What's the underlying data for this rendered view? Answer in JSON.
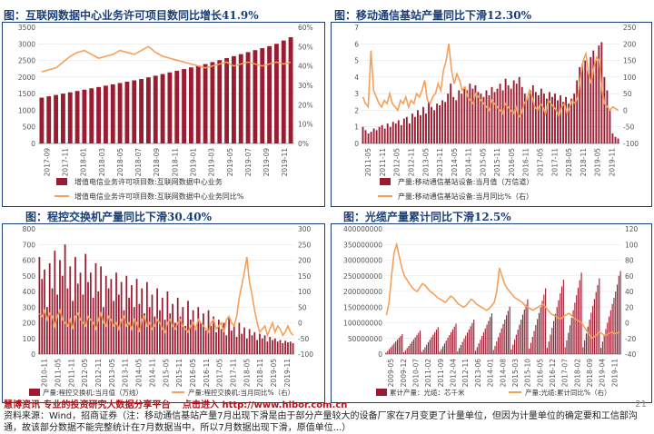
{
  "colors": {
    "bar": "#9b1b30",
    "line": "#f5a05a",
    "title": "#1a3f78",
    "axis": "#555555",
    "frame": "#1a3f78"
  },
  "chart_data": [
    {
      "type": "bar",
      "title": "图：互联网数据中心业务许可项目数同比增长41.9%",
      "x_tick_labels": [
        "2017-09",
        "2017-11",
        "2018-01",
        "2018-03",
        "2018-05",
        "2018-07",
        "2018-09",
        "2018-11",
        "2019-01",
        "2019-03",
        "2019-05",
        "2019-07",
        "2019-09",
        "2019-11"
      ],
      "y_left_ticks": [
        "0",
        "500",
        "1000",
        "1500",
        "2000",
        "2500",
        "3000",
        "3500"
      ],
      "y_right_ticks": [
        "0%",
        "10%",
        "20%",
        "30%",
        "40%",
        "50%",
        "60%"
      ],
      "ylim_left": [
        0,
        3500
      ],
      "ylim_right": [
        0,
        60
      ],
      "legend": [
        "增值电信业务许可项目数:互联网数据中心业务",
        "增值电信业务许可项目数:互联网数据中心业务同比%"
      ],
      "legend_position": "bottom",
      "series": [
        {
          "name": "增值电信业务许可项目数:互联网数据中心业务",
          "kind": "bar",
          "axis": "left",
          "values": [
            1380,
            1420,
            1460,
            1500,
            1540,
            1580,
            1620,
            1660,
            1700,
            1740,
            1780,
            1820,
            1860,
            1900,
            1940,
            1990,
            2040,
            2090,
            2140,
            2190,
            2240,
            2290,
            2340,
            2390,
            2450,
            2510,
            2570,
            2630,
            2690,
            2750,
            2810,
            2870,
            2930,
            3000,
            3100,
            3200
          ]
        },
        {
          "name": "增值电信业务许可项目数:互联网数据中心业务同比%",
          "kind": "line",
          "axis": "right",
          "values": [
            37,
            38,
            39,
            42,
            45,
            47,
            48,
            46,
            44,
            45,
            46,
            48,
            47,
            46,
            48,
            50,
            47,
            45,
            44,
            43,
            42,
            41,
            40,
            39,
            40,
            41,
            42,
            40,
            41,
            42,
            41,
            40,
            41,
            42,
            41,
            42
          ]
        }
      ]
    },
    {
      "type": "bar",
      "title": "图：移动通信基站产量同比下滑12.30%",
      "x_tick_labels": [
        "2011-05",
        "2011-11",
        "2012-05",
        "2012-11",
        "2013-05",
        "2013-11",
        "2014-05",
        "2014-11",
        "2015-05",
        "2015-11",
        "2016-05",
        "2016-11",
        "2017-05",
        "2017-11",
        "2018-05",
        "2018-11",
        "2019-05",
        "2019-11"
      ],
      "y_left_ticks": [
        "0",
        "1",
        "2",
        "3",
        "4",
        "5",
        "6",
        "7"
      ],
      "y_right_ticks": [
        "-100",
        "-50",
        "0",
        "50",
        "100",
        "150",
        "200",
        "250"
      ],
      "ylim_left": [
        0,
        7
      ],
      "ylim_right": [
        -100,
        250
      ],
      "legend": [
        "产量:移动通信基站设备:当月值（万信道）",
        "产量:移动通信基站设备:当月同比%（右）"
      ],
      "legend_position": "bottom",
      "series": [
        {
          "name": "产量:移动通信基站设备:当月值（万信道）",
          "kind": "bar",
          "axis": "left",
          "values": [
            1.0,
            0.8,
            0.6,
            0.7,
            0.9,
            0.8,
            1.0,
            1.1,
            0.9,
            1.2,
            1.0,
            1.3,
            1.2,
            1.4,
            1.1,
            1.5,
            1.6,
            1.2,
            1.8,
            1.6,
            2.0,
            1.7,
            2.2,
            1.8,
            2.5,
            2.2,
            2.0,
            2.4,
            2.3,
            2.6,
            2.5,
            3.0,
            3.6,
            2.8,
            2.6,
            3.2,
            3.0,
            3.4,
            3.2,
            3.6,
            3.3,
            3.5,
            3.1,
            3.0,
            2.8,
            3.2,
            2.9,
            3.4,
            3.1,
            3.3,
            3.6,
            3.2,
            3.9,
            3.5,
            3.3,
            3.8,
            3.6,
            4.0,
            3.4,
            3.0,
            2.8,
            3.2,
            3.5,
            3.1,
            2.9,
            3.3,
            3.0,
            2.7,
            3.1,
            2.8,
            3.0,
            2.6,
            2.9,
            2.5,
            2.8,
            2.4,
            2.7,
            3.0,
            3.8,
            4.6,
            4.8,
            5.0,
            4.4,
            5.2,
            5.6,
            5.0,
            5.9,
            6.1,
            4.0,
            3.2,
            2.0,
            0.6,
            0.4,
            0.3
          ]
        },
        {
          "name": "产量:移动通信基站设备:当月同比%（右）",
          "kind": "line",
          "axis": "right",
          "values": [
            40,
            20,
            10,
            180,
            60,
            40,
            20,
            10,
            30,
            20,
            50,
            20,
            10,
            0,
            30,
            20,
            40,
            10,
            30,
            20,
            50,
            40,
            60,
            90,
            30,
            20,
            40,
            50,
            80,
            60,
            120,
            150,
            200,
            120,
            80,
            110,
            90,
            60,
            70,
            40,
            30,
            20,
            50,
            40,
            30,
            20,
            10,
            0,
            30,
            20,
            10,
            0,
            -10,
            20,
            10,
            0,
            -10,
            10,
            -20,
            -10,
            20,
            30,
            60,
            40,
            10,
            0,
            20,
            10,
            -10,
            30,
            20,
            10,
            0,
            -20,
            10,
            20,
            -10,
            10,
            30,
            20,
            40,
            100,
            150,
            170,
            110,
            80,
            130,
            160,
            150,
            60,
            20,
            10,
            0,
            10,
            5,
            0
          ]
        }
      ]
    },
    {
      "type": "bar",
      "title": "图：程控交换机产量同比下滑30.40%",
      "x_tick_labels": [
        "2010-11",
        "2011-05",
        "2011-11",
        "2012-05",
        "2012-11",
        "2013-05",
        "2013-11",
        "2014-05",
        "2014-11",
        "2015-05",
        "2015-11",
        "2016-05",
        "2016-11",
        "2017-05",
        "2017-11",
        "2018-05",
        "2018-11",
        "2019-05",
        "2019-11"
      ],
      "y_left_ticks": [
        "0",
        "100",
        "200",
        "300",
        "400",
        "500",
        "600",
        "700",
        "800"
      ],
      "y_right_ticks": [
        "-100",
        "-50",
        "0",
        "50",
        "100",
        "150",
        "200",
        "250",
        "300"
      ],
      "ylim_left": [
        0,
        800
      ],
      "ylim_right": [
        -100,
        300
      ],
      "legend": [
        "产量:程控交换机:当月值（万线）",
        "产量:程控交换机:当月同比%（右）"
      ],
      "legend_position": "bottom",
      "series": [
        {
          "name": "产量:程控交换机:当月值（万线）",
          "kind": "bar",
          "axis": "left",
          "values": [
            620,
            480,
            540,
            300,
            580,
            420,
            660,
            380,
            600,
            500,
            700,
            420,
            560,
            340,
            620,
            450,
            520,
            380,
            640,
            460,
            520,
            360,
            580,
            400,
            560,
            300,
            500,
            420,
            480,
            340,
            520,
            380,
            460,
            280,
            500,
            360,
            440,
            300,
            480,
            320,
            420,
            260,
            460,
            300,
            380,
            240,
            420,
            280,
            360,
            220,
            400,
            260,
            320,
            200,
            360,
            240,
            300,
            180,
            340,
            220,
            280,
            160,
            300,
            200,
            260,
            150,
            280,
            180,
            240,
            140,
            220,
            160,
            200,
            120,
            240,
            150,
            180,
            110,
            200,
            130,
            170,
            100,
            160,
            120,
            140,
            90,
            130,
            100,
            120,
            80,
            110,
            90,
            100,
            80,
            90,
            70,
            85,
            75,
            80,
            70
          ]
        },
        {
          "name": "产量:程控交换机:当月同比%（右）",
          "kind": "line",
          "axis": "right",
          "values": [
            30,
            20,
            40,
            10,
            30,
            20,
            -10,
            20,
            40,
            10,
            0,
            -10,
            10,
            -20,
            20,
            30,
            10,
            0,
            -10,
            20,
            10,
            0,
            -20,
            10,
            30,
            0,
            -10,
            20,
            10,
            -10,
            0,
            -20,
            10,
            20,
            -10,
            0,
            -20,
            10,
            0,
            -30,
            10,
            20,
            -10,
            0,
            -20,
            -10,
            10,
            0,
            -20,
            -30,
            0,
            10,
            -10,
            -20,
            0,
            10,
            -10,
            -20,
            -30,
            -10,
            0,
            -20,
            10,
            0,
            -10,
            -20,
            -30,
            0,
            10,
            -20,
            -10,
            0,
            -30,
            10,
            20,
            0,
            -10,
            20,
            80,
            120,
            160,
            210,
            130,
            90,
            40,
            0,
            -30,
            -20,
            -10,
            -40,
            -20,
            0,
            -30,
            -10,
            -20,
            -40,
            -30,
            -10,
            -30,
            -40
          ]
        }
      ]
    },
    {
      "type": "bar",
      "title": "图：光缆产量累计同比下滑12.5%",
      "x_tick_labels": [
        "2009-05",
        "2009-12",
        "2010-07",
        "2011-02",
        "2011-09",
        "2012-04",
        "2012-11",
        "2013-06",
        "2014-01",
        "2014-08",
        "2015-03",
        "2015-10",
        "2016-05",
        "2016-12",
        "2017-07",
        "2018-02",
        "2018-09",
        "2019-04",
        "2019-11"
      ],
      "y_left_ticks": [
        "0",
        "50000000",
        "100000000",
        "150000000",
        "200000000",
        "250000000",
        "300000000",
        "350000000",
        "400000000"
      ],
      "y_right_ticks": [
        "-40",
        "-20",
        "0",
        "20",
        "40",
        "60",
        "80",
        "100",
        "120"
      ],
      "ylim_left": [
        0,
        400000000
      ],
      "ylim_right": [
        -40,
        120
      ],
      "legend": [
        "累计产量：光缆：芯千米",
        "产量:光缆:累计同比%（右）"
      ],
      "legend_position": "bottom",
      "series": [
        {
          "name": "累计产量：光缆：芯千米",
          "kind": "bar",
          "axis": "left",
          "values": [
            5,
            10,
            16,
            22,
            28,
            34,
            40,
            46,
            52,
            58,
            64,
            6,
            12,
            19,
            26,
            33,
            40,
            47,
            54,
            61,
            68,
            75,
            7,
            14,
            22,
            30,
            38,
            46,
            54,
            62,
            70,
            78,
            86,
            8,
            16,
            25,
            34,
            43,
            52,
            61,
            70,
            79,
            88,
            97,
            9,
            19,
            29,
            39,
            49,
            59,
            69,
            79,
            89,
            99,
            110,
            11,
            22,
            34,
            46,
            58,
            70,
            82,
            94,
            106,
            118,
            130,
            13,
            26,
            40,
            54,
            68,
            82,
            96,
            110,
            124,
            138,
            152,
            15,
            30,
            46,
            62,
            78,
            94,
            110,
            126,
            142,
            158,
            175,
            18,
            36,
            55,
            74,
            93,
            112,
            131,
            150,
            170,
            190,
            210,
            20,
            40,
            62,
            84,
            106,
            128,
            150,
            172,
            194,
            216,
            238,
            22,
            44,
            68,
            92,
            116,
            140,
            164,
            188,
            212,
            236,
            260,
            22,
            44,
            66,
            88,
            110,
            132,
            154,
            176,
            198,
            220,
            242,
            20,
            40,
            60,
            80,
            100,
            120,
            140,
            160,
            180,
            200,
            222,
            250,
            265
          ]
        },
        {
          "name": "产量:光缆:累计同比%（右）",
          "kind": "line",
          "axis": "right",
          "values": [
            10,
            25,
            60,
            90,
            100,
            85,
            70,
            60,
            55,
            50,
            45,
            42,
            40,
            45,
            50,
            48,
            44,
            40,
            38,
            35,
            32,
            30,
            28,
            26,
            30,
            34,
            32,
            28,
            24,
            22,
            20,
            22,
            26,
            30,
            28,
            24,
            22,
            20,
            18,
            16,
            18,
            22,
            26,
            40,
            70,
            60,
            50,
            44,
            40,
            36,
            32,
            30,
            28,
            26,
            22,
            20,
            18,
            16,
            18,
            20,
            22,
            24,
            20,
            16,
            12,
            10,
            8,
            6,
            5,
            8,
            10,
            12,
            10,
            6,
            4,
            2,
            0,
            -5,
            -10,
            -15,
            -20,
            -18,
            -15,
            -12,
            -14,
            -16,
            -15,
            -13,
            -12,
            -14,
            -13,
            -12
          ]
        }
      ]
    }
  ],
  "watermark": {
    "brand": "慧博资讯",
    "slogan": "专业的投资研究大数据分享平台",
    "url": "点击进入 http://www.hibor.com.cn"
  },
  "source_note": "资料来源：Wind，招商证券（注：移动通信基站产量7月出现下滑是由于部分产量较大的设备厂家在7月变更了计量单位，但因为计量单位的确定要和工信部沟通，故该部分数据不能完整统计在7月数据当中，所以7月数据出现下滑，原值单位...）",
  "page_number": "21"
}
